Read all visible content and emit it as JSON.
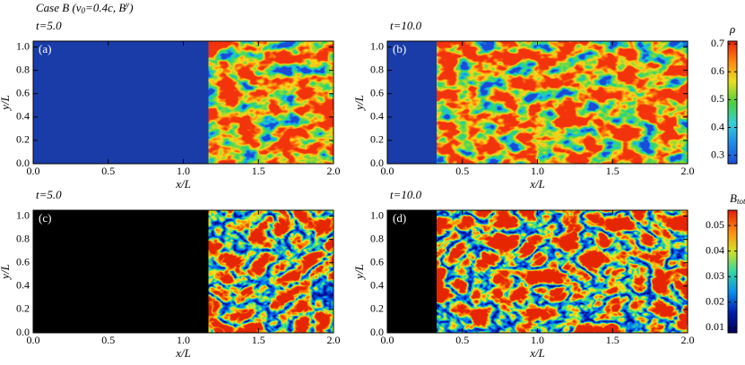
{
  "title": [
    "Case B (v",
    "0",
    "=0.4c, B",
    "y",
    ")"
  ],
  "chart_data": [
    {
      "type": "heatmap",
      "title": "t=5.0",
      "label": "(a)",
      "xlabel": "x/L",
      "ylabel": "y/L",
      "field": "rho",
      "front_x": 1.17,
      "xlim": [
        0,
        2
      ],
      "ylim": [
        0,
        1.05
      ],
      "xticks": [
        {
          "value": 0,
          "label": "0.0"
        },
        {
          "value": 0.5,
          "label": "0.5"
        },
        {
          "value": 1,
          "label": "1.0"
        },
        {
          "value": 1.5,
          "label": "1.5"
        },
        {
          "value": 2,
          "label": "2.0"
        }
      ],
      "yticks": [
        {
          "value": 0,
          "label": "0.0"
        },
        {
          "value": 0.2,
          "label": "0.2"
        },
        {
          "value": 0.4,
          "label": "0.4"
        },
        {
          "value": 0.6,
          "label": "0.6"
        },
        {
          "value": 0.8,
          "label": "0.8"
        },
        {
          "value": 1,
          "label": "1.0"
        }
      ]
    },
    {
      "type": "heatmap",
      "title": "t=10.0",
      "label": "(b)",
      "xlabel": "x/L",
      "ylabel": "y/L",
      "field": "rho",
      "front_x": 0.33,
      "xlim": [
        0,
        2
      ],
      "ylim": [
        0,
        1.05
      ],
      "xticks": [
        {
          "value": 0,
          "label": "0.0"
        },
        {
          "value": 0.5,
          "label": "0.5"
        },
        {
          "value": 1,
          "label": "1.0"
        },
        {
          "value": 1.5,
          "label": "1.5"
        },
        {
          "value": 2,
          "label": "2.0"
        }
      ],
      "yticks": [
        {
          "value": 0,
          "label": "0.0"
        },
        {
          "value": 0.2,
          "label": "0.2"
        },
        {
          "value": 0.4,
          "label": "0.4"
        },
        {
          "value": 0.6,
          "label": "0.6"
        },
        {
          "value": 0.8,
          "label": "0.8"
        },
        {
          "value": 1,
          "label": "1.0"
        }
      ],
      "colorbar": {
        "label": [
          "ρ"
        ],
        "zlim": [
          0.27,
          0.71
        ],
        "ticks": [
          {
            "value": 0.3,
            "label": "0.3"
          },
          {
            "value": 0.4,
            "label": "0.4"
          },
          {
            "value": 0.5,
            "label": "0.5"
          },
          {
            "value": 0.6,
            "label": "0.6"
          },
          {
            "value": 0.7,
            "label": "0.7"
          }
        ]
      }
    },
    {
      "type": "heatmap",
      "title": "t=5.0",
      "label": "(c)",
      "xlabel": "x/L",
      "ylabel": "y/L",
      "field": "btot",
      "front_x": 1.17,
      "xlim": [
        0,
        2
      ],
      "ylim": [
        0,
        1.05
      ],
      "xticks": [
        {
          "value": 0,
          "label": "0.0"
        },
        {
          "value": 0.5,
          "label": "0.5"
        },
        {
          "value": 1,
          "label": "1.0"
        },
        {
          "value": 1.5,
          "label": "1.5"
        },
        {
          "value": 2,
          "label": "2.0"
        }
      ],
      "yticks": [
        {
          "value": 0,
          "label": "0.0"
        },
        {
          "value": 0.2,
          "label": "0.2"
        },
        {
          "value": 0.4,
          "label": "0.4"
        },
        {
          "value": 0.6,
          "label": "0.6"
        },
        {
          "value": 0.8,
          "label": "0.8"
        },
        {
          "value": 1,
          "label": "1.0"
        }
      ]
    },
    {
      "type": "heatmap",
      "title": "t=10.0",
      "label": "(d)",
      "xlabel": "x/L",
      "ylabel": "y/L",
      "field": "btot",
      "front_x": 0.33,
      "xlim": [
        0,
        2
      ],
      "ylim": [
        0,
        1.05
      ],
      "xticks": [
        {
          "value": 0,
          "label": "0.0"
        },
        {
          "value": 0.5,
          "label": "0.5"
        },
        {
          "value": 1,
          "label": "1.0"
        },
        {
          "value": 1.5,
          "label": "1.5"
        },
        {
          "value": 2,
          "label": "2.0"
        }
      ],
      "yticks": [
        {
          "value": 0,
          "label": "0.0"
        },
        {
          "value": 0.2,
          "label": "0.2"
        },
        {
          "value": 0.4,
          "label": "0.4"
        },
        {
          "value": 0.6,
          "label": "0.6"
        },
        {
          "value": 0.8,
          "label": "0.8"
        },
        {
          "value": 1,
          "label": "1.0"
        }
      ],
      "colorbar": {
        "label": [
          "B",
          "tot"
        ],
        "zlim": [
          0.008,
          0.056
        ],
        "ticks": [
          {
            "value": 0.01,
            "label": "0.01"
          },
          {
            "value": 0.02,
            "label": "0.02"
          },
          {
            "value": 0.03,
            "label": "0.03"
          },
          {
            "value": 0.04,
            "label": "0.04"
          },
          {
            "value": 0.05,
            "label": "0.05"
          }
        ]
      }
    }
  ]
}
